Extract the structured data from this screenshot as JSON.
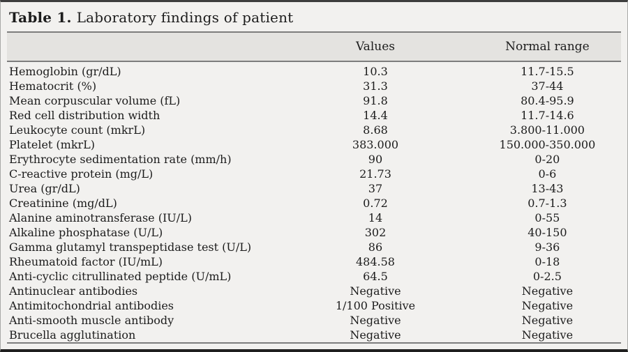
{
  "table": {
    "title_label": "Table 1.",
    "title_text": "Laboratory findings of patient",
    "header": {
      "parameter": "",
      "values": "Values",
      "normal_range": "Normal range"
    },
    "rows": [
      {
        "parameter": "Hemoglobin (gr/dL)",
        "value": "10.3",
        "normal_range": "11.7-15.5"
      },
      {
        "parameter": "Hematocrit (%)",
        "value": "31.3",
        "normal_range": "37-44"
      },
      {
        "parameter": "Mean corpuscular volume (fL)",
        "value": "91.8",
        "normal_range": "80.4-95.9"
      },
      {
        "parameter": "Red cell distribution width",
        "value": "14.4",
        "normal_range": "11.7-14.6"
      },
      {
        "parameter": "Leukocyte count (mkrL)",
        "value": "8.68",
        "normal_range": "3.800-11.000"
      },
      {
        "parameter": "Platelet (mkrL)",
        "value": "383.000",
        "normal_range": "150.000-350.000"
      },
      {
        "parameter": "Erythrocyte sedimentation rate (mm/h)",
        "value": "90",
        "normal_range": "0-20"
      },
      {
        "parameter": "C-reactive protein (mg/L)",
        "value": "21.73",
        "normal_range": "0-6"
      },
      {
        "parameter": "Urea (gr/dL)",
        "value": "37",
        "normal_range": "13-43"
      },
      {
        "parameter": "Creatinine (mg/dL)",
        "value": "0.72",
        "normal_range": "0.7-1.3"
      },
      {
        "parameter": "Alanine aminotransferase (IU/L)",
        "value": "14",
        "normal_range": "0-55"
      },
      {
        "parameter": "Alkaline phosphatase (U/L)",
        "value": "302",
        "normal_range": "40-150"
      },
      {
        "parameter": "Gamma glutamyl transpeptidase test (U/L)",
        "value": "86",
        "normal_range": "9-36"
      },
      {
        "parameter": "Rheumatoid factor (IU/mL)",
        "value": "484.58",
        "normal_range": "0-18"
      },
      {
        "parameter": "Anti-cyclic citrullinated peptide (U/mL)",
        "value": "64.5",
        "normal_range": "0-2.5"
      },
      {
        "parameter": "Antinuclear antibodies",
        "value": "Negative",
        "normal_range": "Negative"
      },
      {
        "parameter": "Antimitochondrial antibodies",
        "value": "1/100 Positive",
        "normal_range": "Negative"
      },
      {
        "parameter": "Anti-smooth muscle antibody",
        "value": "Negative",
        "normal_range": "Negative"
      },
      {
        "parameter": "Brucella agglutination",
        "value": "Negative",
        "normal_range": "Negative"
      }
    ]
  },
  "colors": {
    "background": "#f2f1ef",
    "header_band": "#e4e3e0",
    "rule": "#7d7d7d",
    "frame_top": "#3d3d3d",
    "frame_bottom": "#1f1f1f",
    "text": "#1c1c1c"
  }
}
